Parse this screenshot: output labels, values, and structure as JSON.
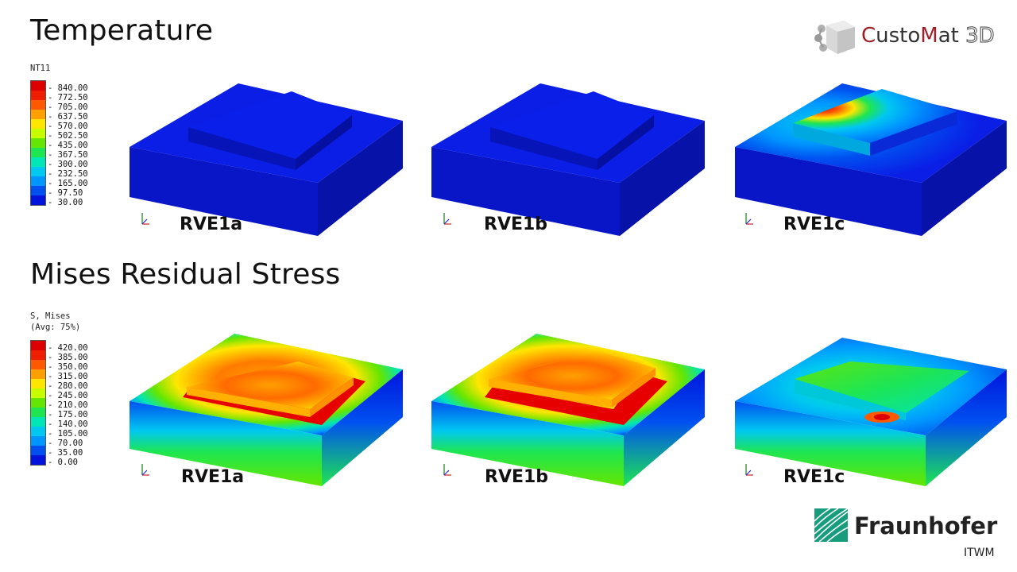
{
  "sections": {
    "temperature_title": "Temperature",
    "stress_title": "Mises Residual Stress"
  },
  "temperature_legend": {
    "title": "NT11",
    "labels": [
      "840.00",
      "772.50",
      "705.00",
      "637.50",
      "570.00",
      "502.50",
      "435.00",
      "367.50",
      "300.00",
      "232.50",
      "165.00",
      "97.50",
      "30.00"
    ]
  },
  "stress_legend": {
    "title_line1": "S, Mises",
    "title_line2": "(Avg: 75%)",
    "labels": [
      "420.00",
      "385.00",
      "350.00",
      "315.00",
      "280.00",
      "245.00",
      "210.00",
      "175.00",
      "140.00",
      "105.00",
      "70.00",
      "35.00",
      "0.00"
    ]
  },
  "legend_colors": [
    "#dc0000",
    "#f01e00",
    "#ff5a00",
    "#ffa000",
    "#ffe600",
    "#c8ff00",
    "#64e600",
    "#1ee650",
    "#00e6b4",
    "#00c8f0",
    "#0096ff",
    "#0050f0",
    "#0014dc"
  ],
  "models": {
    "temp": [
      "RVE1a",
      "RVE1b",
      "RVE1c"
    ],
    "stress": [
      "RVE1a",
      "RVE1b",
      "RVE1c"
    ]
  },
  "logos": {
    "customat_c1": "C",
    "customat_mid1": "usto",
    "customat_c2": "M",
    "customat_mid2": "at",
    "customat_3d": "3D",
    "fraunhofer": "Fraunhofer",
    "fraunhofer_sub": "ITWM"
  },
  "colors": {
    "accent_red": "#a01e28",
    "fraunhofer_green": "#179c7d"
  }
}
